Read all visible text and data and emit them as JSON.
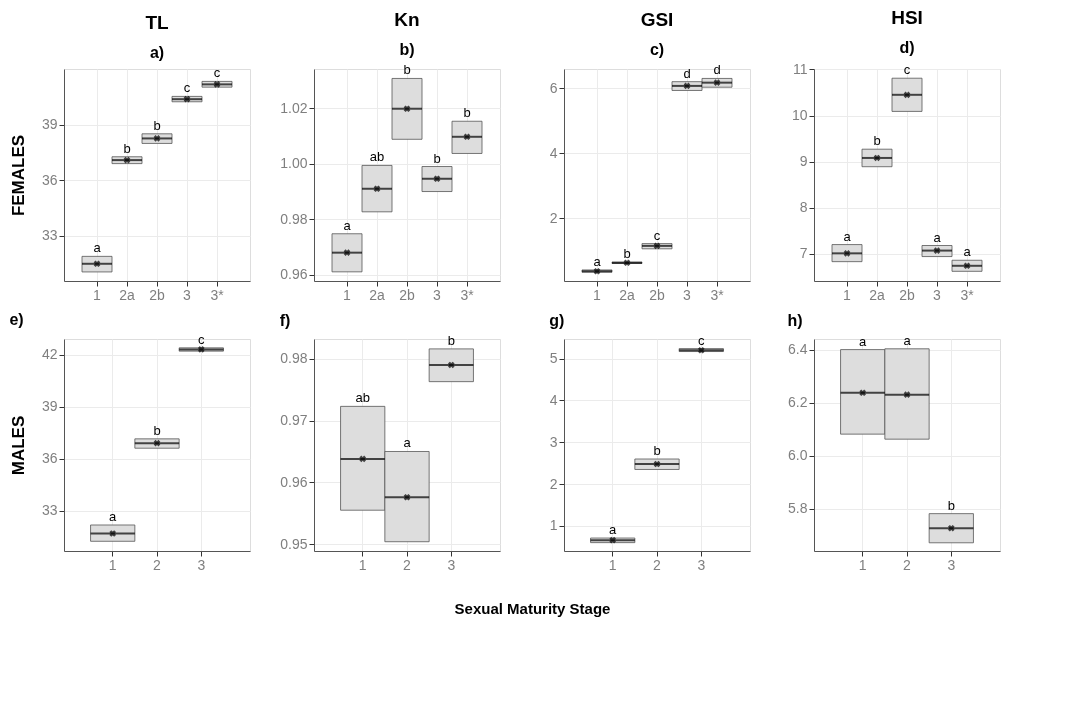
{
  "chart_data": [
    {
      "type": "box",
      "title": "TL",
      "subtitle": "a)",
      "ylabel": "FEMALES",
      "categories": [
        "1",
        "2a",
        "2b",
        "3",
        "3*"
      ],
      "ylim": [
        30.55,
        42.0
      ],
      "yticks": [
        33,
        36,
        39
      ],
      "grid": true,
      "marker": "cross",
      "series": [
        {
          "color": "#dddddd",
          "boxes": [
            {
              "low": 31.04,
              "q1": 31.04,
              "median": 31.48,
              "q3": 31.88,
              "high": 31.88,
              "mean": 31.48
            },
            {
              "low": 36.89,
              "q1": 36.89,
              "median": 37.08,
              "q3": 37.26,
              "high": 37.26,
              "mean": 37.08
            },
            {
              "low": 37.98,
              "q1": 37.98,
              "median": 38.25,
              "q3": 38.5,
              "high": 38.5,
              "mean": 38.25
            },
            {
              "low": 40.23,
              "q1": 40.23,
              "median": 40.37,
              "q3": 40.52,
              "high": 40.52,
              "mean": 40.37
            },
            {
              "low": 41.02,
              "q1": 41.02,
              "median": 41.17,
              "q3": 41.33,
              "high": 41.33,
              "mean": 41.17
            }
          ]
        }
      ],
      "annotations": [
        {
          "text": "a",
          "x": "1",
          "y": 31.88
        },
        {
          "text": "b",
          "x": "2a",
          "y": 37.26
        },
        {
          "text": "b",
          "x": "2b",
          "y": 38.5
        },
        {
          "text": "c",
          "x": "3",
          "y": 40.52
        },
        {
          "text": "c",
          "x": "3*",
          "y": 41.33
        }
      ]
    },
    {
      "type": "box",
      "title": "Kn",
      "subtitle": "b)",
      "categories": [
        "1",
        "2a",
        "2b",
        "3",
        "3*"
      ],
      "ylim": [
        0.9578,
        1.0341
      ],
      "yticks": [
        0.96,
        0.98,
        {
          "value": 1.0,
          "label": "1.00"
        },
        1.02
      ],
      "grid": true,
      "marker": "cross",
      "series": [
        {
          "color": "#dddddd",
          "boxes": [
            {
              "low": 0.9611,
              "q1": 0.9611,
              "median": 0.968,
              "q3": 0.9748,
              "high": 0.9748,
              "mean": 0.968
            },
            {
              "low": 0.9827,
              "q1": 0.9827,
              "median": 0.991,
              "q3": 0.9994,
              "high": 0.9994,
              "mean": 0.991
            },
            {
              "low": 1.0088,
              "q1": 1.0088,
              "median": 1.0198,
              "q3": 1.0307,
              "high": 1.0307,
              "mean": 1.0198
            },
            {
              "low": 0.99,
              "q1": 0.99,
              "median": 0.9946,
              "q3": 0.999,
              "high": 0.999,
              "mean": 0.9946
            },
            {
              "low": 1.0037,
              "q1": 1.0037,
              "median": 1.0097,
              "q3": 1.0153,
              "high": 1.0153,
              "mean": 1.0097
            }
          ]
        }
      ],
      "annotations": [
        {
          "text": "a",
          "x": "1",
          "y": 0.9748
        },
        {
          "text": "ab",
          "x": "2a",
          "y": 0.9994
        },
        {
          "text": "b",
          "x": "2b",
          "y": 1.0307
        },
        {
          "text": "b",
          "x": "3",
          "y": 0.999
        },
        {
          "text": "b",
          "x": "3*",
          "y": 1.0153
        }
      ]
    },
    {
      "type": "box",
      "title": "GSI",
      "subtitle": "c)",
      "categories": [
        "1",
        "2a",
        "2b",
        "3",
        "3*"
      ],
      "ylim": [
        0.07,
        6.59
      ],
      "yticks": [
        2,
        4,
        6
      ],
      "grid": true,
      "marker": "cross",
      "series": [
        {
          "color": "#dddddd",
          "boxes": [
            {
              "low": 0.34,
              "q1": 0.34,
              "median": 0.37,
              "q3": 0.41,
              "high": 0.41,
              "mean": 0.37
            },
            {
              "low": 0.61,
              "q1": 0.61,
              "median": 0.63,
              "q3": 0.65,
              "high": 0.65,
              "mean": 0.63
            },
            {
              "low": 1.06,
              "q1": 1.06,
              "median": 1.15,
              "q3": 1.22,
              "high": 1.22,
              "mean": 1.15
            },
            {
              "low": 5.93,
              "q1": 5.93,
              "median": 6.07,
              "q3": 6.2,
              "high": 6.2,
              "mean": 6.07
            },
            {
              "low": 6.03,
              "q1": 6.03,
              "median": 6.17,
              "q3": 6.3,
              "high": 6.3,
              "mean": 6.17
            }
          ]
        }
      ],
      "annotations": [
        {
          "text": "a",
          "x": "1",
          "y": 0.41
        },
        {
          "text": "b",
          "x": "2a",
          "y": 0.65
        },
        {
          "text": "c",
          "x": "2b",
          "y": 1.22
        },
        {
          "text": "d",
          "x": "3",
          "y": 6.2
        },
        {
          "text": "d",
          "x": "3*",
          "y": 6.3
        }
      ]
    },
    {
      "type": "box",
      "title": "HSI",
      "subtitle": "d)",
      "categories": [
        "1",
        "2a",
        "2b",
        "3",
        "3*"
      ],
      "ylim": [
        6.41,
        11.01
      ],
      "yticks": [
        7,
        8,
        9,
        10,
        11
      ],
      "grid": true,
      "marker": "cross",
      "series": [
        {
          "color": "#dddddd",
          "boxes": [
            {
              "low": 6.83,
              "q1": 6.83,
              "median": 7.01,
              "q3": 7.2,
              "high": 7.2,
              "mean": 7.01
            },
            {
              "low": 8.89,
              "q1": 8.89,
              "median": 9.08,
              "q3": 9.27,
              "high": 9.27,
              "mean": 9.08
            },
            {
              "low": 10.09,
              "q1": 10.09,
              "median": 10.45,
              "q3": 10.81,
              "high": 10.81,
              "mean": 10.45
            },
            {
              "low": 6.94,
              "q1": 6.94,
              "median": 7.07,
              "q3": 7.18,
              "high": 7.18,
              "mean": 7.07
            },
            {
              "low": 6.62,
              "q1": 6.62,
              "median": 6.74,
              "q3": 6.86,
              "high": 6.86,
              "mean": 6.74
            }
          ]
        }
      ],
      "annotations": [
        {
          "text": "a",
          "x": "1",
          "y": 7.2
        },
        {
          "text": "b",
          "x": "2a",
          "y": 9.27
        },
        {
          "text": "c",
          "x": "2b",
          "y": 10.81
        },
        {
          "text": "a",
          "x": "3",
          "y": 7.18
        },
        {
          "text": "a",
          "x": "3*",
          "y": 6.86
        }
      ]
    },
    {
      "type": "box",
      "title": "e)",
      "ylabel": "MALES",
      "categories": [
        "1",
        "2",
        "3"
      ],
      "ylim": [
        30.69,
        42.92
      ],
      "yticks": [
        33,
        36,
        39,
        42
      ],
      "grid": true,
      "marker": "cross",
      "series": [
        {
          "color": "#dddddd",
          "boxes": [
            {
              "low": 31.25,
              "q1": 31.25,
              "median": 31.7,
              "q3": 32.19,
              "high": 32.19,
              "mean": 31.7
            },
            {
              "low": 36.62,
              "q1": 36.62,
              "median": 36.91,
              "q3": 37.16,
              "high": 37.16,
              "mean": 36.91
            },
            {
              "low": 42.22,
              "q1": 42.22,
              "median": 42.32,
              "q3": 42.41,
              "high": 42.41,
              "mean": 42.32
            }
          ]
        }
      ],
      "annotations": [
        {
          "text": "a",
          "x": "1",
          "y": 32.19
        },
        {
          "text": "b",
          "x": "2",
          "y": 37.16
        },
        {
          "text": "c",
          "x": "3",
          "y": 42.41
        }
      ]
    },
    {
      "type": "box",
      "title": "f)",
      "xlabel": "Sexual Maturity Stage",
      "categories": [
        "1",
        "2",
        "3"
      ],
      "ylim": [
        0.9489,
        0.9832
      ],
      "yticks": [
        0.95,
        0.96,
        0.97,
        0.98
      ],
      "grid": true,
      "marker": "cross",
      "series": [
        {
          "color": "#dddddd",
          "boxes": [
            {
              "low": 0.9555,
              "q1": 0.9555,
              "median": 0.9638,
              "q3": 0.9723,
              "high": 0.9723,
              "mean": 0.9638
            },
            {
              "low": 0.9504,
              "q1": 0.9504,
              "median": 0.9576,
              "q3": 0.965,
              "high": 0.965,
              "mean": 0.9576
            },
            {
              "low": 0.9763,
              "q1": 0.9763,
              "median": 0.979,
              "q3": 0.9816,
              "high": 0.9816,
              "mean": 0.979
            }
          ]
        }
      ],
      "annotations": [
        {
          "text": "ab",
          "x": "1",
          "y": 0.9723
        },
        {
          "text": "a",
          "x": "2",
          "y": 0.965
        },
        {
          "text": "b",
          "x": "3",
          "y": 0.9816
        }
      ]
    },
    {
      "type": "box",
      "title": "g)",
      "categories": [
        "1",
        "2",
        "3"
      ],
      "ylim": [
        0.4,
        5.47
      ],
      "yticks": [
        1,
        2,
        3,
        4,
        5
      ],
      "grid": true,
      "marker": "cross",
      "series": [
        {
          "color": "#dddddd",
          "boxes": [
            {
              "low": 0.6,
              "q1": 0.6,
              "median": 0.66,
              "q3": 0.71,
              "high": 0.71,
              "mean": 0.66
            },
            {
              "low": 2.35,
              "q1": 2.35,
              "median": 2.48,
              "q3": 2.6,
              "high": 2.6,
              "mean": 2.48
            },
            {
              "low": 5.17,
              "q1": 5.17,
              "median": 5.2,
              "q3": 5.24,
              "high": 5.24,
              "mean": 5.2
            }
          ]
        }
      ],
      "annotations": [
        {
          "text": "a",
          "x": "1",
          "y": 0.71
        },
        {
          "text": "b",
          "x": "2",
          "y": 2.6
        },
        {
          "text": "c",
          "x": "3",
          "y": 5.24
        }
      ]
    },
    {
      "type": "box",
      "title": "h)",
      "categories": [
        "1",
        "2",
        "3"
      ],
      "ylim": [
        5.64,
        6.44
      ],
      "yticks": [
        5.8,
        {
          "value": 6.0,
          "label": "6.0"
        },
        6.2,
        6.4
      ],
      "grid": true,
      "marker": "cross",
      "series": [
        {
          "color": "#dddddd",
          "boxes": [
            {
              "low": 6.081,
              "q1": 6.081,
              "median": 6.237,
              "q3": 6.4,
              "high": 6.4,
              "mean": 6.237
            },
            {
              "low": 6.062,
              "q1": 6.062,
              "median": 6.23,
              "q3": 6.403,
              "high": 6.403,
              "mean": 6.23
            },
            {
              "low": 5.671,
              "q1": 5.671,
              "median": 5.726,
              "q3": 5.781,
              "high": 5.781,
              "mean": 5.726
            }
          ]
        }
      ],
      "annotations": [
        {
          "text": "a",
          "x": "1",
          "y": 6.4
        },
        {
          "text": "a",
          "x": "2",
          "y": 6.403
        },
        {
          "text": "b",
          "x": "3",
          "y": 5.781
        }
      ]
    }
  ]
}
